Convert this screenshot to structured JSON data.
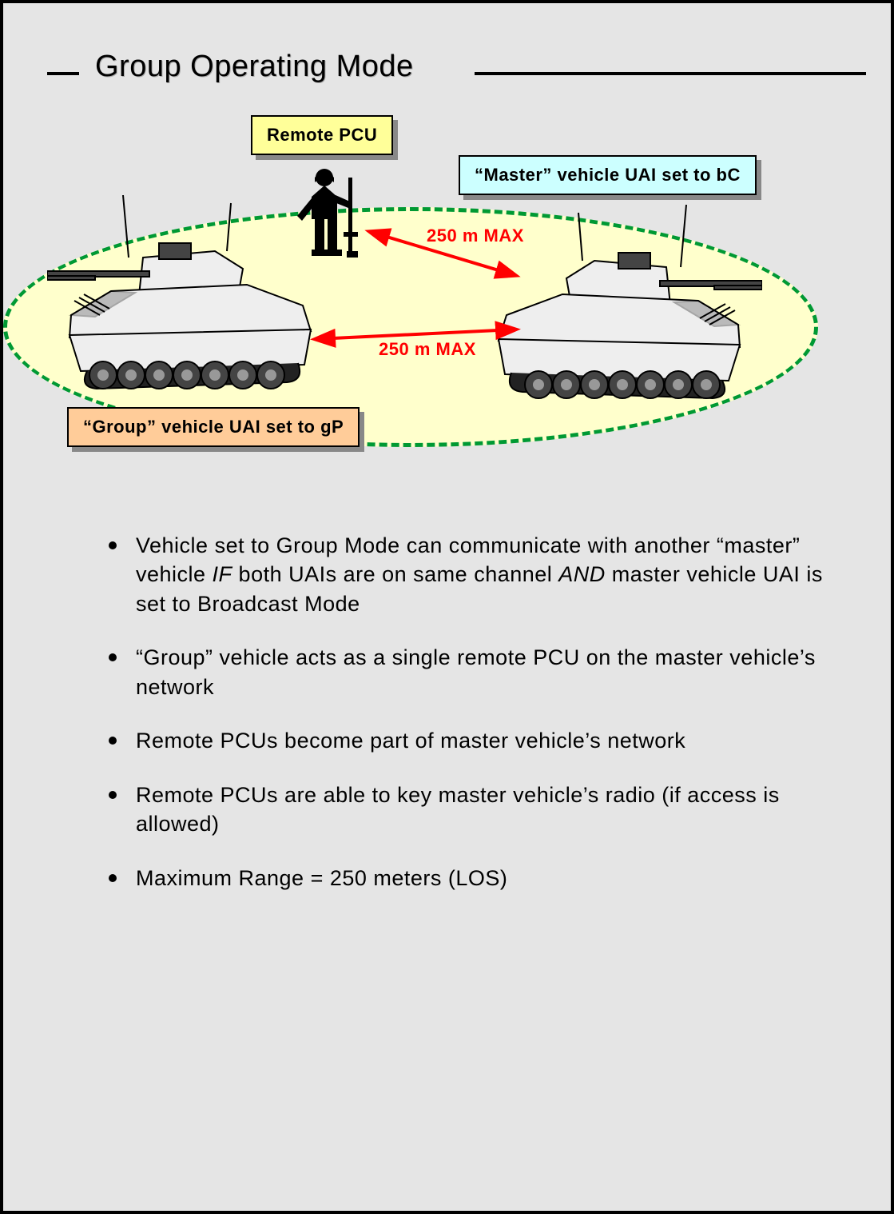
{
  "title": "Group Operating Mode",
  "ellipse": {
    "border_color": "#009933",
    "fill_color": "#ffffcc",
    "dash": "16 12"
  },
  "boxes": {
    "remote_pcu": {
      "text": "Remote PCU",
      "bg": "#ffff99"
    },
    "master": {
      "pre": "“Master” vehicle UAI set to ",
      "bold": "bC",
      "bg": "#ccffff"
    },
    "group": {
      "pre": "“Group” vehicle UAI set to ",
      "bold": "gP",
      "bg": "#ffcc99"
    }
  },
  "distance_label": "250 m MAX",
  "arrow_color": "#ff0000",
  "vehicle": {
    "body": "#eeeeee",
    "dark": "#444444",
    "tread": "#222222"
  },
  "bullets": [
    {
      "html": "Vehicle set to Group Mode can communicate with another “master” vehicle <span class='ital'>IF</span> both UAIs are on same channel <span class='ital'>AND</span> master vehicle UAI is set to Broadcast Mode"
    },
    {
      "html": "“Group” vehicle acts as a single remote PCU on the master vehicle’s network"
    },
    {
      "html": "Remote PCUs become part of master vehicle’s network"
    },
    {
      "html": "Remote PCUs are able to key master vehicle’s radio (if access is allowed)"
    },
    {
      "html": "Maximum Range = 250 meters (LOS)"
    }
  ]
}
